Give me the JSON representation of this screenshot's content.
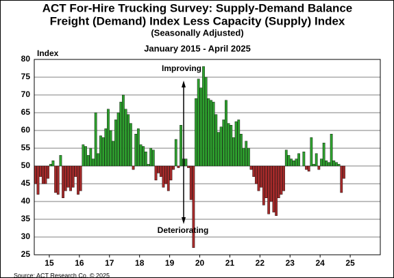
{
  "chart_data": {
    "type": "bar",
    "title_lines": [
      "ACT For-Hire Trucking Survey: Supply-Demand Balance",
      "Freight (Demand) Index Less Capacity (Supply) Index",
      "(Seasonally Adjusted)"
    ],
    "subtitle": "January 2015 - April 2025",
    "y_label": "Index",
    "annotations": [
      "Improving",
      "Deteriorating"
    ],
    "source": "Source: ACT Research Co. © 2025",
    "baseline": 50,
    "color_above": "#2ea02e",
    "color_below": "#a52a2a",
    "grid": true,
    "xlim": [
      15,
      26.5
    ],
    "xticks": [
      {
        "value": 15.5,
        "label": "15"
      },
      {
        "value": 16.5,
        "label": "16"
      },
      {
        "value": 17.5,
        "label": "17"
      },
      {
        "value": 18.5,
        "label": "18"
      },
      {
        "value": 19.5,
        "label": "19"
      },
      {
        "value": 20.5,
        "label": "20"
      },
      {
        "value": 21.5,
        "label": "21"
      },
      {
        "value": 22.5,
        "label": "22"
      },
      {
        "value": 23.5,
        "label": "23"
      },
      {
        "value": 24.5,
        "label": "24"
      },
      {
        "value": 25.5,
        "label": "25"
      }
    ],
    "ylim": [
      25,
      80
    ],
    "yticks": [
      25,
      30,
      35,
      40,
      45,
      50,
      55,
      60,
      65,
      70,
      75,
      80
    ],
    "x": [
      15.042,
      15.125,
      15.208,
      15.292,
      15.375,
      15.458,
      15.542,
      15.625,
      15.708,
      15.792,
      15.875,
      15.958,
      16.042,
      16.125,
      16.208,
      16.292,
      16.375,
      16.458,
      16.542,
      16.625,
      16.708,
      16.792,
      16.875,
      16.958,
      17.042,
      17.125,
      17.208,
      17.292,
      17.375,
      17.458,
      17.542,
      17.625,
      17.708,
      17.792,
      17.875,
      17.958,
      18.042,
      18.125,
      18.208,
      18.292,
      18.375,
      18.458,
      18.542,
      18.625,
      18.708,
      18.792,
      18.875,
      18.958,
      19.042,
      19.125,
      19.208,
      19.292,
      19.375,
      19.458,
      19.542,
      19.625,
      19.708,
      19.792,
      19.875,
      19.958,
      20.042,
      20.125,
      20.208,
      20.292,
      20.375,
      20.458,
      20.542,
      20.625,
      20.708,
      20.792,
      20.875,
      20.958,
      21.042,
      21.125,
      21.208,
      21.292,
      21.375,
      21.458,
      21.542,
      21.625,
      21.708,
      21.792,
      21.875,
      21.958,
      22.042,
      22.125,
      22.208,
      22.292,
      22.375,
      22.458,
      22.542,
      22.625,
      22.708,
      22.792,
      22.875,
      22.958,
      23.042,
      23.125,
      23.208,
      23.292,
      23.375,
      23.458,
      23.542,
      23.625,
      23.708,
      23.792,
      23.875,
      23.958,
      24.042,
      24.125,
      24.208,
      24.292,
      24.375,
      24.458,
      24.542,
      24.625,
      24.708,
      24.792,
      24.875,
      24.958,
      25.042,
      25.125,
      25.208,
      25.292
    ],
    "values": [
      45,
      42,
      47,
      45,
      45,
      46.5,
      50.5,
      51.5,
      42.5,
      42,
      53,
      41,
      43,
      44,
      43,
      44,
      47,
      42,
      43,
      56,
      55.5,
      53,
      55,
      52,
      65,
      53.5,
      58.5,
      58,
      60.5,
      66,
      60,
      57,
      63,
      65,
      68,
      70,
      66,
      64.5,
      62,
      49,
      59,
      60.5,
      56,
      55.5,
      54,
      50.5,
      55,
      54.5,
      46,
      48,
      47,
      44,
      45,
      43,
      46,
      49,
      57.5,
      49.5,
      61.5,
      52,
      52,
      49.5,
      40.5,
      27,
      69,
      74.5,
      72,
      78,
      75,
      69,
      68.5,
      68,
      64.5,
      59.5,
      61,
      63,
      68.5,
      62,
      61.5,
      58,
      62.5,
      63,
      59,
      55,
      57,
      55,
      49,
      47,
      45,
      43,
      44,
      39,
      41,
      36.5,
      40,
      37,
      36,
      41,
      42,
      43,
      54.5,
      53,
      52,
      51.5,
      52,
      53.5,
      50,
      54,
      49,
      48.5,
      58,
      50.5,
      53.5,
      49,
      52,
      56.5,
      51.5,
      51,
      59,
      51.5,
      51,
      50.5,
      42.5,
      46.5
    ]
  }
}
